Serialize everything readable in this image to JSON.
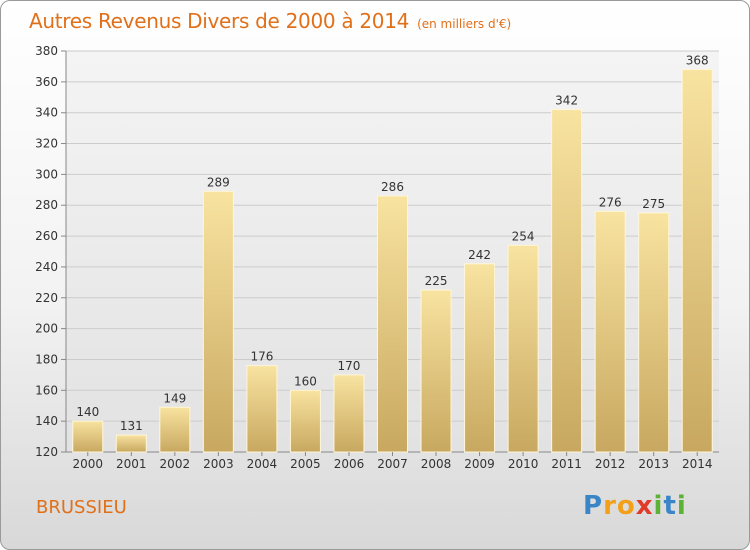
{
  "title": "Autres Revenus Divers de 2000 à 2014",
  "unit_note": "(en milliers d'€)",
  "place": "BRUSSIEU",
  "logo": {
    "text": "Proxiti",
    "colors": [
      "#3a85c8",
      "#f2a01c",
      "#e23a2a",
      "#5bb234"
    ]
  },
  "colors": {
    "title": "#e0701a",
    "bar_light": "#f8e3a0",
    "bar_dark": "#c8a860",
    "grid": "#cccccc"
  },
  "chart_data": {
    "type": "bar",
    "title": "Autres Revenus Divers de 2000 à 2014",
    "xlabel": "",
    "ylabel": "",
    "categories": [
      "2000",
      "2001",
      "2002",
      "2003",
      "2004",
      "2005",
      "2006",
      "2007",
      "2008",
      "2009",
      "2010",
      "2011",
      "2012",
      "2013",
      "2014"
    ],
    "values": [
      140,
      131,
      149,
      289,
      176,
      160,
      170,
      286,
      225,
      242,
      254,
      342,
      276,
      275,
      368
    ],
    "ylim": [
      120,
      380
    ],
    "yticks": [
      120,
      140,
      160,
      180,
      200,
      220,
      240,
      260,
      280,
      300,
      320,
      340,
      360,
      380
    ],
    "grid": true,
    "data_labels": true
  }
}
